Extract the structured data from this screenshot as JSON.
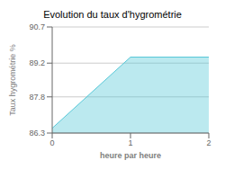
{
  "chart_data": {
    "type": "area",
    "title": "Evolution du taux d'hygrométrie",
    "xlabel": "heure par heure",
    "ylabel": "Taux hygrométrie %",
    "x": [
      0.0,
      1.0,
      2.0
    ],
    "values": [
      86.5,
      89.45,
      89.45
    ],
    "xlim": [
      0,
      2
    ],
    "ylim": [
      86.3,
      90.7
    ],
    "xticks": [
      0,
      1,
      2
    ],
    "yticks": [
      86.3,
      87.8,
      89.2,
      90.7
    ],
    "color": "#56c8d8",
    "grid": true
  }
}
